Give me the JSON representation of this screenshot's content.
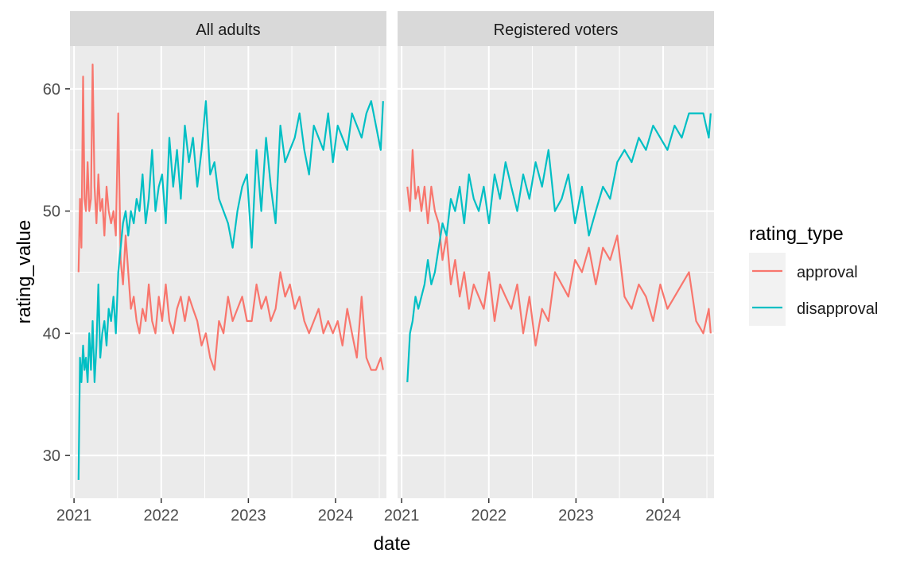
{
  "chart_data": {
    "type": "line",
    "facet_panels": [
      "All adults",
      "Registered voters"
    ],
    "xlabel": "date",
    "ylabel": "rating_value",
    "x_ticks": [
      "2021",
      "2022",
      "2023",
      "2024"
    ],
    "y_ticks": [
      30,
      40,
      50,
      60
    ],
    "xlim": [
      "2020-12-15",
      "2024-08-01"
    ],
    "ylim": [
      26.5,
      63.5
    ],
    "grid": true,
    "legend": {
      "title": "rating_type",
      "position": "right",
      "entries": [
        "approval",
        "disapproval"
      ]
    },
    "colors": {
      "approval": "#F8766D",
      "disapproval": "#00BFC4",
      "panel_bg": "#EBEBEB",
      "strip_bg": "#D9D9D9"
    },
    "panels": [
      {
        "name": "All adults",
        "series": [
          {
            "name": "approval",
            "x": [
              "2021-01-20",
              "2021-01-26",
              "2021-02-01",
              "2021-02-08",
              "2021-02-14",
              "2021-02-20",
              "2021-02-27",
              "2021-03-06",
              "2021-03-13",
              "2021-03-20",
              "2021-03-28",
              "2021-04-05",
              "2021-04-13",
              "2021-04-21",
              "2021-04-29",
              "2021-05-08",
              "2021-05-17",
              "2021-05-26",
              "2021-06-05",
              "2021-06-15",
              "2021-06-25",
              "2021-07-05",
              "2021-07-15",
              "2021-07-25",
              "2021-08-05",
              "2021-08-16",
              "2021-08-27",
              "2021-09-08",
              "2021-09-20",
              "2021-10-02",
              "2021-10-15",
              "2021-10-28",
              "2021-11-10",
              "2021-11-24",
              "2021-12-08",
              "2021-12-22",
              "2022-01-05",
              "2022-01-20",
              "2022-02-04",
              "2022-02-20",
              "2022-03-08",
              "2022-03-24",
              "2022-04-10",
              "2022-04-27",
              "2022-05-14",
              "2022-06-01",
              "2022-06-19",
              "2022-07-07",
              "2022-07-25",
              "2022-08-12",
              "2022-08-31",
              "2022-09-19",
              "2022-10-08",
              "2022-10-27",
              "2022-11-16",
              "2022-12-06",
              "2022-12-26",
              "2023-01-15",
              "2023-02-04",
              "2023-02-24",
              "2023-03-16",
              "2023-04-05",
              "2023-04-25",
              "2023-05-15",
              "2023-06-04",
              "2023-06-24",
              "2023-07-14",
              "2023-08-03",
              "2023-08-23",
              "2023-09-12",
              "2023-10-02",
              "2023-10-22",
              "2023-11-11",
              "2023-12-01",
              "2023-12-21",
              "2024-01-10",
              "2024-01-30",
              "2024-02-19",
              "2024-03-10",
              "2024-03-30",
              "2024-04-19",
              "2024-05-09",
              "2024-05-29",
              "2024-06-18",
              "2024-07-08",
              "2024-07-18"
            ],
            "values": [
              45,
              51,
              47,
              61,
              51,
              50,
              54,
              50,
              51,
              62,
              52,
              49,
              53,
              50,
              51,
              48,
              52,
              50,
              49,
              50,
              48,
              58,
              46,
              44,
              48,
              45,
              42,
              43,
              41,
              40,
              42,
              41,
              44,
              41,
              40,
              43,
              41,
              44,
              41,
              40,
              42,
              43,
              41,
              43,
              42,
              41,
              39,
              40,
              38,
              37,
              41,
              40,
              43,
              41,
              42,
              43,
              41,
              41,
              44,
              42,
              43,
              41,
              42,
              45,
              43,
              44,
              42,
              43,
              41,
              40,
              41,
              42,
              40,
              41,
              40,
              41,
              39,
              42,
              40,
              38,
              43,
              38,
              37,
              37,
              38,
              37
            ]
          },
          {
            "name": "disapproval",
            "x": [
              "2021-01-20",
              "2021-01-26",
              "2021-02-01",
              "2021-02-08",
              "2021-02-14",
              "2021-02-20",
              "2021-02-27",
              "2021-03-06",
              "2021-03-13",
              "2021-03-20",
              "2021-03-28",
              "2021-04-05",
              "2021-04-13",
              "2021-04-21",
              "2021-04-29",
              "2021-05-08",
              "2021-05-17",
              "2021-05-26",
              "2021-06-05",
              "2021-06-15",
              "2021-06-25",
              "2021-07-05",
              "2021-07-15",
              "2021-07-25",
              "2021-08-05",
              "2021-08-16",
              "2021-08-27",
              "2021-09-08",
              "2021-09-20",
              "2021-10-02",
              "2021-10-15",
              "2021-10-28",
              "2021-11-10",
              "2021-11-24",
              "2021-12-08",
              "2021-12-22",
              "2022-01-05",
              "2022-01-20",
              "2022-02-04",
              "2022-02-20",
              "2022-03-08",
              "2022-03-24",
              "2022-04-10",
              "2022-04-27",
              "2022-05-14",
              "2022-06-01",
              "2022-06-19",
              "2022-07-07",
              "2022-07-25",
              "2022-08-12",
              "2022-08-31",
              "2022-09-19",
              "2022-10-08",
              "2022-10-27",
              "2022-11-16",
              "2022-12-06",
              "2022-12-26",
              "2023-01-15",
              "2023-02-04",
              "2023-02-24",
              "2023-03-16",
              "2023-04-05",
              "2023-04-25",
              "2023-05-15",
              "2023-06-04",
              "2023-06-24",
              "2023-07-14",
              "2023-08-03",
              "2023-08-23",
              "2023-09-12",
              "2023-10-02",
              "2023-10-22",
              "2023-11-11",
              "2023-12-01",
              "2023-12-21",
              "2024-01-10",
              "2024-01-30",
              "2024-02-19",
              "2024-03-10",
              "2024-03-30",
              "2024-04-19",
              "2024-05-09",
              "2024-05-29",
              "2024-06-18",
              "2024-07-08",
              "2024-07-18"
            ],
            "values": [
              28,
              38,
              36,
              39,
              37,
              38,
              36,
              40,
              37,
              41,
              36,
              39,
              44,
              38,
              40,
              41,
              39,
              42,
              41,
              43,
              40,
              45,
              47,
              49,
              50,
              48,
              50,
              49,
              51,
              50,
              53,
              49,
              51,
              55,
              50,
              52,
              53,
              49,
              56,
              52,
              55,
              51,
              57,
              54,
              56,
              52,
              55,
              59,
              53,
              54,
              51,
              50,
              49,
              47,
              50,
              52,
              53,
              47,
              55,
              50,
              56,
              52,
              49,
              57,
              54,
              55,
              56,
              58,
              55,
              53,
              57,
              56,
              55,
              58,
              54,
              57,
              56,
              55,
              58,
              57,
              56,
              58,
              59,
              57,
              55,
              59
            ]
          }
        ]
      },
      {
        "name": "Registered voters",
        "series": [
          {
            "name": "approval",
            "x": [
              "2021-01-25",
              "2021-02-05",
              "2021-02-16",
              "2021-02-28",
              "2021-03-12",
              "2021-03-25",
              "2021-04-07",
              "2021-04-21",
              "2021-05-05",
              "2021-05-20",
              "2021-06-05",
              "2021-06-21",
              "2021-07-08",
              "2021-07-26",
              "2021-08-13",
              "2021-09-01",
              "2021-09-20",
              "2021-10-10",
              "2021-10-30",
              "2021-11-20",
              "2021-12-11",
              "2022-01-02",
              "2022-01-25",
              "2022-02-17",
              "2022-03-12",
              "2022-04-05",
              "2022-04-30",
              "2022-05-25",
              "2022-06-20",
              "2022-07-16",
              "2022-08-12",
              "2022-09-08",
              "2022-10-05",
              "2022-11-02",
              "2022-11-30",
              "2022-12-28",
              "2023-01-26",
              "2023-02-24",
              "2023-03-25",
              "2023-04-24",
              "2023-05-24",
              "2023-06-23",
              "2023-07-23",
              "2023-08-22",
              "2023-09-21",
              "2023-10-21",
              "2023-11-20",
              "2023-12-20",
              "2024-01-19",
              "2024-02-18",
              "2024-03-19",
              "2024-04-18",
              "2024-05-18",
              "2024-06-17",
              "2024-07-10",
              "2024-07-18"
            ],
            "values": [
              52,
              50,
              55,
              51,
              52,
              50,
              52,
              49,
              52,
              50,
              49,
              46,
              48,
              44,
              46,
              43,
              45,
              42,
              44,
              43,
              42,
              45,
              41,
              44,
              43,
              42,
              44,
              40,
              43,
              39,
              42,
              41,
              45,
              44,
              43,
              46,
              45,
              47,
              44,
              47,
              46,
              48,
              43,
              42,
              44,
              43,
              41,
              44,
              42,
              43,
              44,
              45,
              41,
              40,
              42,
              40
            ]
          },
          {
            "name": "disapproval",
            "x": [
              "2021-01-25",
              "2021-02-05",
              "2021-02-16",
              "2021-02-28",
              "2021-03-12",
              "2021-03-25",
              "2021-04-07",
              "2021-04-21",
              "2021-05-05",
              "2021-05-20",
              "2021-06-05",
              "2021-06-21",
              "2021-07-08",
              "2021-07-26",
              "2021-08-13",
              "2021-09-01",
              "2021-09-20",
              "2021-10-10",
              "2021-10-30",
              "2021-11-20",
              "2021-12-11",
              "2022-01-02",
              "2022-01-25",
              "2022-02-17",
              "2022-03-12",
              "2022-04-05",
              "2022-04-30",
              "2022-05-25",
              "2022-06-20",
              "2022-07-16",
              "2022-08-12",
              "2022-09-08",
              "2022-10-05",
              "2022-11-02",
              "2022-11-30",
              "2022-12-28",
              "2023-01-26",
              "2023-02-24",
              "2023-03-25",
              "2023-04-24",
              "2023-05-24",
              "2023-06-23",
              "2023-07-23",
              "2023-08-22",
              "2023-09-21",
              "2023-10-21",
              "2023-11-20",
              "2023-12-20",
              "2024-01-19",
              "2024-02-18",
              "2024-03-19",
              "2024-04-18",
              "2024-05-18",
              "2024-06-17",
              "2024-07-10",
              "2024-07-18"
            ],
            "values": [
              36,
              40,
              41,
              43,
              42,
              43,
              44,
              46,
              44,
              45,
              47,
              49,
              48,
              51,
              50,
              52,
              49,
              53,
              51,
              50,
              52,
              49,
              53,
              51,
              54,
              52,
              50,
              53,
              51,
              54,
              52,
              55,
              50,
              51,
              53,
              49,
              52,
              48,
              50,
              52,
              51,
              54,
              55,
              54,
              56,
              55,
              57,
              56,
              55,
              57,
              56,
              58,
              58,
              58,
              56,
              58
            ]
          }
        ]
      }
    ]
  }
}
